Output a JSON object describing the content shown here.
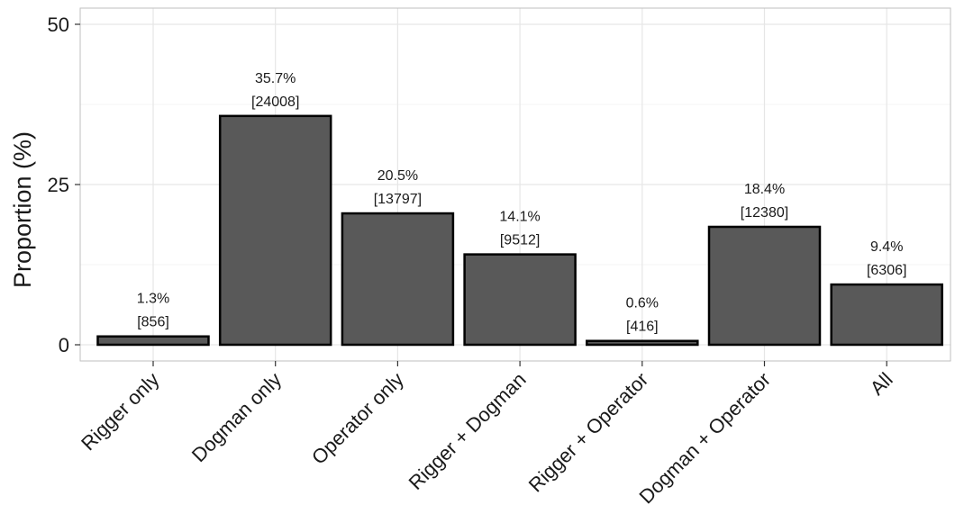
{
  "chart_data": {
    "type": "bar",
    "categories": [
      "Rigger only",
      "Dogman only",
      "Operator only",
      "Rigger + Dogman",
      "Rigger + Operator",
      "Dogman + Operator",
      "All"
    ],
    "values": [
      1.3,
      35.7,
      20.5,
      14.1,
      0.6,
      18.4,
      9.4
    ],
    "percent_labels": [
      "1.3%",
      "35.7%",
      "20.5%",
      "14.1%",
      "0.6%",
      "18.4%",
      "9.4%"
    ],
    "count_labels": [
      "[856]",
      "[24008]",
      "[13797]",
      "[9512]",
      "[416]",
      "[12380]",
      "[6306]"
    ],
    "xlabel": "",
    "ylabel": "Proportion (%)",
    "ylim": [
      0,
      50
    ],
    "yticks": [
      0,
      25,
      50
    ],
    "ytick_labels": [
      "0",
      "25",
      "50"
    ],
    "grid": true,
    "legend": "none",
    "colors": {
      "bar_fill": "#595959",
      "bar_stroke": "#000000",
      "grid": "#e6e6e6",
      "panel_border": "#bfbfbf"
    }
  }
}
